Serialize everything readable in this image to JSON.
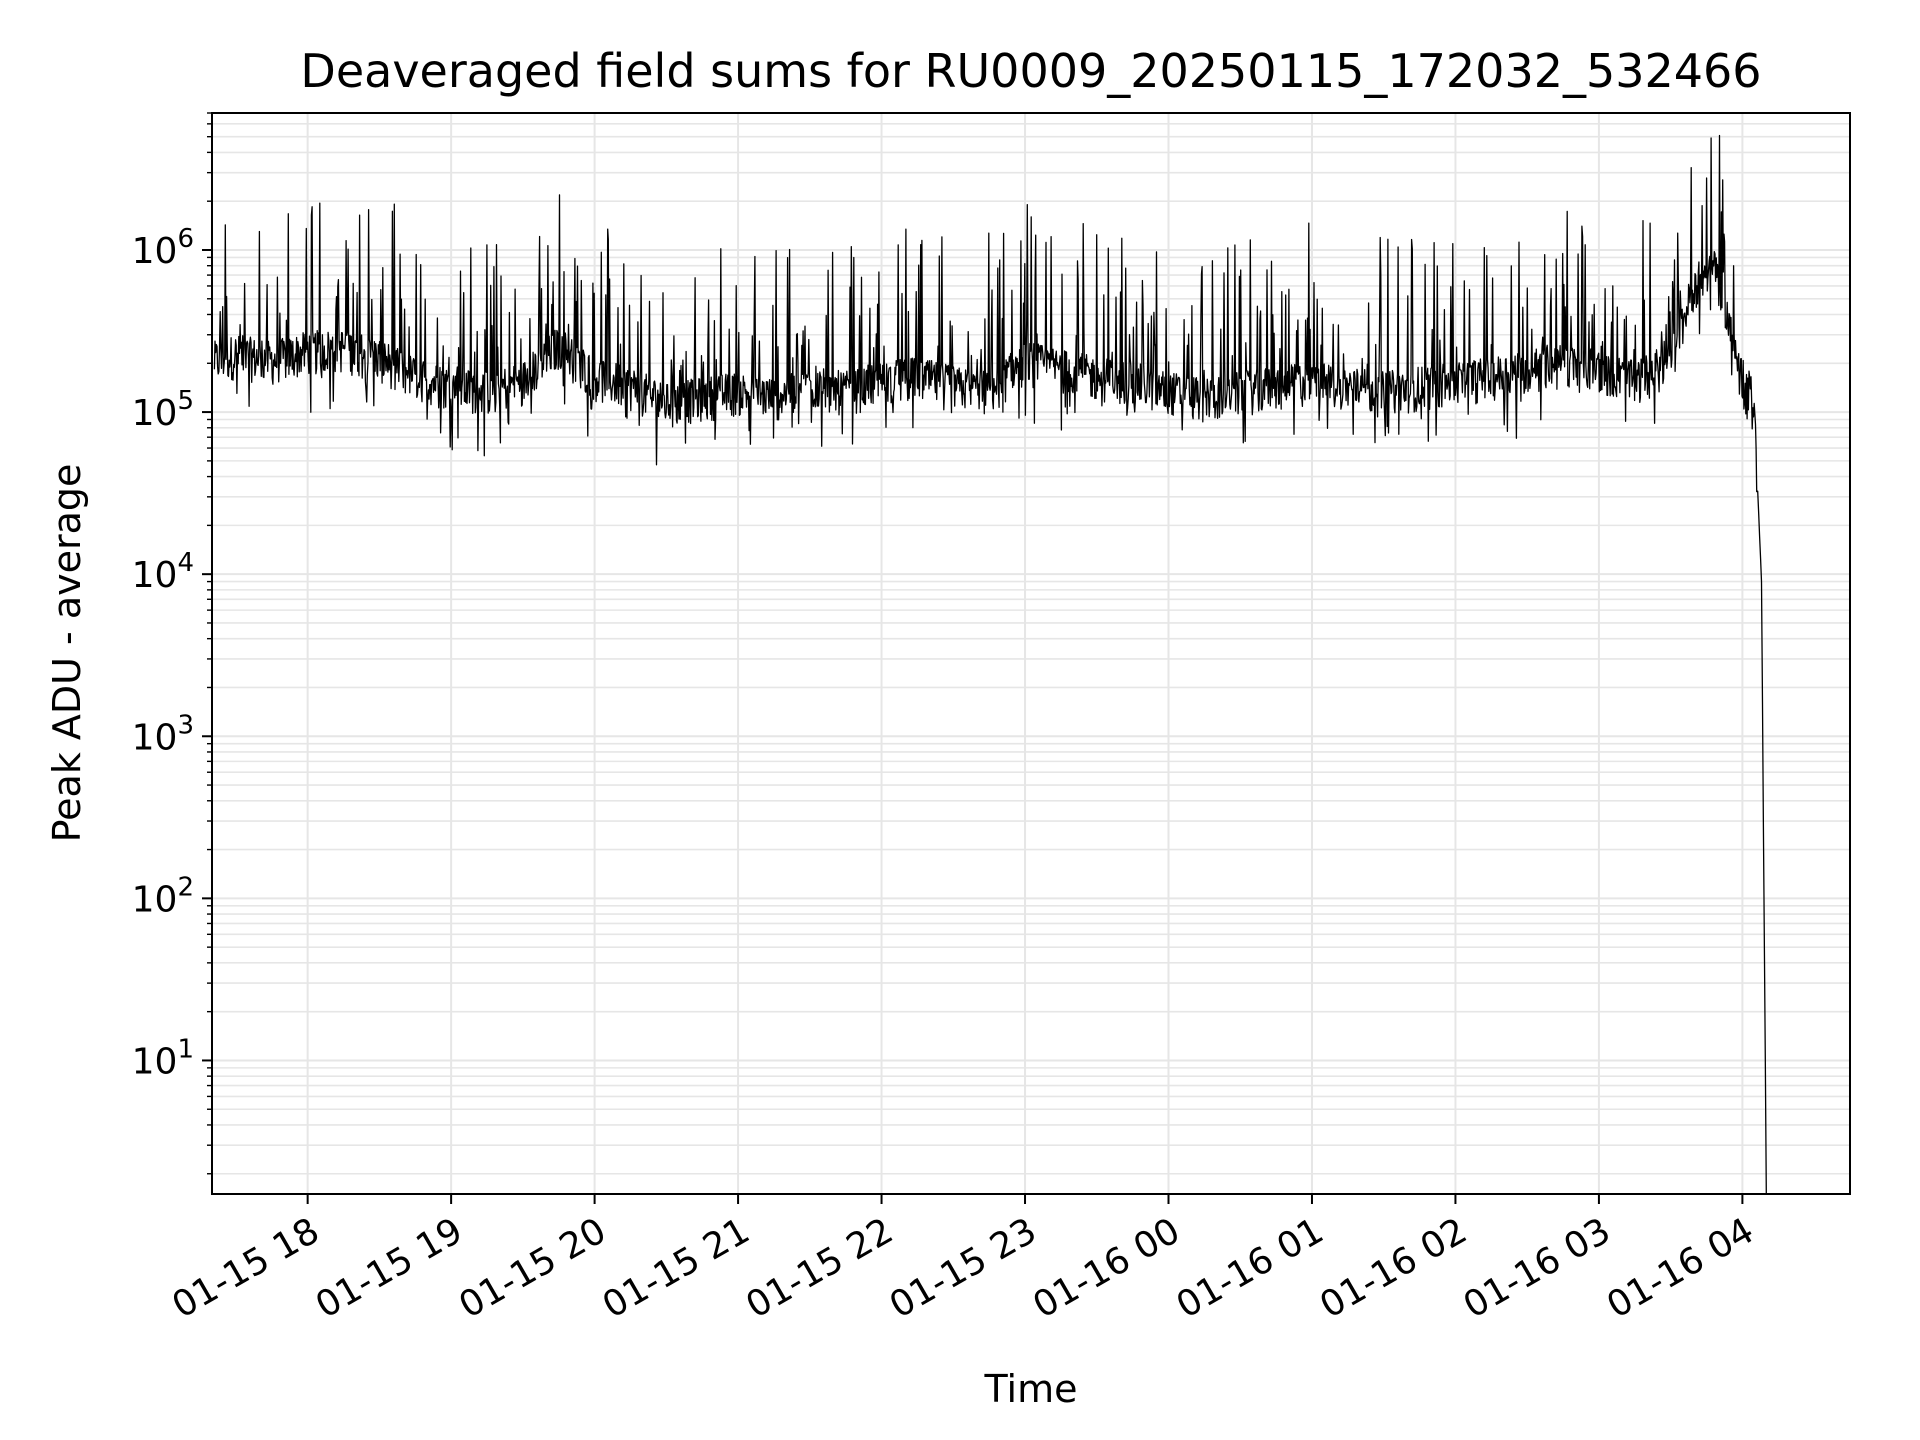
{
  "chart_data": {
    "type": "line",
    "title": "Deaveraged field sums for RU0009_20250115_172032_532466",
    "xlabel": "Time",
    "ylabel": "Peak ADU - average",
    "yscale": "log",
    "ylim": [
      1.5,
      7000000
    ],
    "xlim": [
      "2025-01-15 17:20",
      "2025-01-16 04:45"
    ],
    "grid": true,
    "line_color": "#000000",
    "grid_color": "#e6e6e6",
    "x_ticks": [
      "01-15 18",
      "01-15 19",
      "01-15 20",
      "01-15 21",
      "01-15 22",
      "01-15 23",
      "01-16 00",
      "01-16 01",
      "01-16 02",
      "01-16 03",
      "01-16 04"
    ],
    "y_ticks": [
      {
        "base": "10",
        "exp": "1"
      },
      {
        "base": "10",
        "exp": "2"
      },
      {
        "base": "10",
        "exp": "3"
      },
      {
        "base": "10",
        "exp": "4"
      },
      {
        "base": "10",
        "exp": "5"
      },
      {
        "base": "10",
        "exp": "6"
      }
    ],
    "series": [
      {
        "name": "",
        "x": [
          "2025-01-15 17:21",
          "2025-01-15 17:30",
          "2025-01-15 17:45",
          "2025-01-15 18:00",
          "2025-01-15 18:15",
          "2025-01-15 18:30",
          "2025-01-15 18:45",
          "2025-01-15 19:00",
          "2025-01-15 19:15",
          "2025-01-15 19:30",
          "2025-01-15 19:45",
          "2025-01-15 20:00",
          "2025-01-15 20:15",
          "2025-01-15 20:30",
          "2025-01-15 20:45",
          "2025-01-15 21:00",
          "2025-01-15 21:15",
          "2025-01-15 21:30",
          "2025-01-15 21:45",
          "2025-01-15 22:00",
          "2025-01-15 22:15",
          "2025-01-15 22:30",
          "2025-01-15 22:45",
          "2025-01-15 23:00",
          "2025-01-15 23:15",
          "2025-01-15 23:30",
          "2025-01-15 23:45",
          "2025-01-16 00:00",
          "2025-01-16 00:15",
          "2025-01-16 00:30",
          "2025-01-16 00:45",
          "2025-01-16 01:00",
          "2025-01-16 01:15",
          "2025-01-16 01:30",
          "2025-01-16 01:45",
          "2025-01-16 02:00",
          "2025-01-16 02:15",
          "2025-01-16 02:30",
          "2025-01-16 02:45",
          "2025-01-16 03:00",
          "2025-01-16 03:15",
          "2025-01-16 03:30",
          "2025-01-16 03:40",
          "2025-01-16 03:50",
          "2025-01-16 03:55",
          "2025-01-16 04:00",
          "2025-01-16 04:05",
          "2025-01-16 04:08",
          "2025-01-16 04:10"
        ],
        "y": [
          200000,
          220000,
          200000,
          230000,
          240000,
          210000,
          160000,
          140000,
          130000,
          150000,
          250000,
          160000,
          140000,
          110000,
          120000,
          130000,
          120000,
          140000,
          130000,
          150000,
          160000,
          140000,
          130000,
          200000,
          180000,
          160000,
          150000,
          130000,
          120000,
          130000,
          140000,
          150000,
          140000,
          130000,
          140000,
          150000,
          160000,
          180000,
          200000,
          180000,
          150000,
          200000,
          600000,
          800000,
          300000,
          150000,
          100000,
          9000,
          1.5
        ]
      }
    ]
  }
}
